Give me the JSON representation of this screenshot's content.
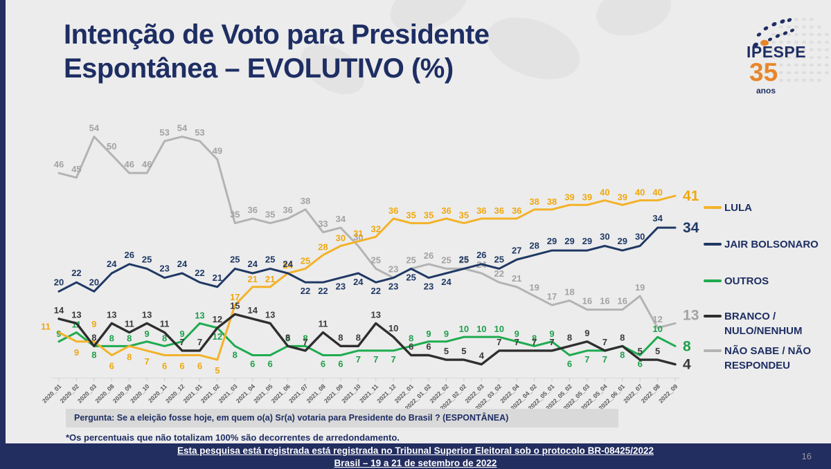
{
  "slide": {
    "title_line1": "Intenção de Voto para Presidente",
    "title_line2": "Espontânea – EVOLUTIVO (%)",
    "logo": {
      "name": "IPESPE",
      "years": "35",
      "anos_label": "anos"
    },
    "question_label": "Pergunta:  Se a eleição fosse hoje, em quem o(a) Sr(a) votaria para  Presidente do Brasil ? (ESPONTÂNEA)",
    "footnote": "*Os percentuais que não totalizam 100% são decorrentes de arredondamento.",
    "footer_line1": "Esta pesquisa está registrada está registrada no Tribunal Superior Eleitoral sob o protocolo BR-08425/2022",
    "footer_line2": "Brasil – 19 a 21 de setembro de 2022",
    "page_number": "16"
  },
  "colors": {
    "background": "#ECECEC",
    "navy": "#1E2E63",
    "lula_yellow": "#F3B229",
    "bolsonaro_blue": "#1F3864",
    "outros_green": "#1FAB4F",
    "branco_black": "#2E2E2E",
    "naosabe_gray": "#B3B3B3",
    "footer_bar": "#222D60",
    "question_box": "#D9D9D9",
    "logo_orange": "#E8862B"
  },
  "chart_data": {
    "type": "line",
    "title": "Intenção de Voto para Presidente Espontânea – EVOLUTIVO (%)",
    "xlabel": "",
    "ylabel": "",
    "ylim": [
      0,
      60
    ],
    "grid": false,
    "legend_position": "right",
    "categories": [
      "2020_01",
      "2020_02",
      "2020_03",
      "2020_08",
      "2020_09",
      "2020_10",
      "2020_11",
      "2020_12",
      "2021_01",
      "2021_02",
      "2021_03",
      "2021_04",
      "2021_05",
      "2021_06",
      "2021_07",
      "2021_08",
      "2021_09",
      "2021_10",
      "2021_11",
      "2021_12",
      "2022_01",
      "2022_01_02",
      "2022_02",
      "2022_02_02",
      "2022_03",
      "2022_03_02",
      "2022_04",
      "2022_04_02",
      "2022_05_01",
      "2022_05_02",
      "2022_05_03",
      "2022_05_04",
      "2022_06_01",
      "2022_07",
      "2022_08",
      "2022_09"
    ],
    "series": [
      {
        "name": "LULA",
        "color": "#F3B229",
        "label_color": "#EFA80F",
        "values": [
          11,
          9,
          9,
          6,
          8,
          7,
          6,
          6,
          6,
          5,
          17,
          21,
          21,
          24,
          25,
          28,
          30,
          31,
          32,
          36,
          35,
          35,
          36,
          35,
          36,
          36,
          36,
          38,
          38,
          39,
          39,
          40,
          39,
          40,
          40,
          41
        ],
        "end_label": "41"
      },
      {
        "name": "JAIR BOLSONARO",
        "color": "#1F3864",
        "label_color": "#1F3864",
        "values": [
          20,
          22,
          20,
          24,
          26,
          25,
          23,
          24,
          22,
          21,
          25,
          24,
          25,
          24,
          22,
          22,
          23,
          24,
          22,
          23,
          25,
          23,
          24,
          25,
          26,
          25,
          27,
          28,
          29,
          29,
          29,
          30,
          29,
          30,
          34,
          34
        ],
        "end_label": "34"
      },
      {
        "name": "OUTROS",
        "color": "#1FAB4F",
        "label_color": "#1FA04B",
        "values": [
          9,
          11,
          8,
          8,
          8,
          9,
          8,
          9,
          13,
          12,
          8,
          6,
          6,
          8,
          8,
          6,
          6,
          7,
          7,
          7,
          8,
          9,
          9,
          10,
          10,
          10,
          9,
          8,
          9,
          6,
          7,
          7,
          8,
          6,
          10,
          8
        ],
        "end_label": "8"
      },
      {
        "name": "BRANCO / NULO/NENHUM",
        "color": "#2E2E2E",
        "label_color": "#3A3A3A",
        "values": [
          14,
          13,
          8,
          13,
          11,
          13,
          11,
          7,
          7,
          12,
          15,
          14,
          13,
          8,
          7,
          11,
          8,
          8,
          13,
          10,
          6,
          6,
          5,
          5,
          4,
          7,
          7,
          7,
          7,
          8,
          9,
          7,
          8,
          5,
          5,
          4
        ],
        "end_label": "4"
      },
      {
        "name": "NÃO SABE / NÃO RESPONDEU",
        "color": "#B3B3B3",
        "label_color": "#A3A3A3",
        "values": [
          46,
          45,
          54,
          50,
          46,
          46,
          53,
          54,
          53,
          49,
          35,
          36,
          35,
          36,
          38,
          33,
          34,
          30,
          25,
          23,
          25,
          26,
          25,
          25,
          24,
          22,
          21,
          19,
          17,
          18,
          16,
          16,
          16,
          19,
          12,
          13
        ],
        "end_label": "13"
      }
    ],
    "legend": [
      {
        "lines": [
          "LULA"
        ],
        "color": "#F3B229"
      },
      {
        "lines": [
          "JAIR BOLSONARO"
        ],
        "color": "#1F3864"
      },
      {
        "lines": [
          "OUTROS"
        ],
        "color": "#1FAB4F"
      },
      {
        "lines": [
          "BRANCO /",
          "NULO/NENHUM"
        ],
        "color": "#2E2E2E"
      },
      {
        "lines": [
          "NÃO SABE / NÃO",
          "RESPONDEU"
        ],
        "color": "#B3B3B3"
      }
    ]
  }
}
